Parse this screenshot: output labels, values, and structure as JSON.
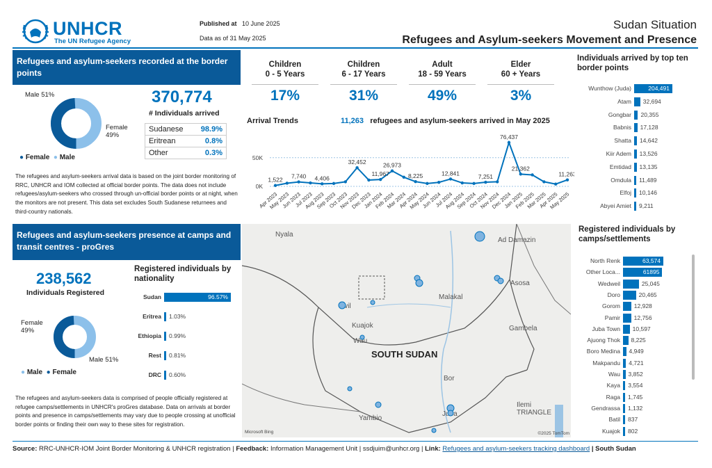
{
  "header": {
    "org_name": "UNHCR",
    "org_sub": "The UN Refugee Agency",
    "published_label": "Published at",
    "published_date": "10 June 2025",
    "data_as_of": "Data as of 31 May 2025",
    "situation": "Sudan Situation",
    "title": "Refugees and Asylum-seekers Movement and Presence"
  },
  "border": {
    "heading": "Refugees and asylum-seekers recorded at the border points",
    "total": "370,774",
    "total_label": "# Individuals arrived",
    "male_label": "Male 51%",
    "female_label": "Female 49%",
    "female_pct": 49,
    "legend_female": "Female",
    "legend_male": "Male",
    "nationalities": [
      {
        "name": "Sudanese",
        "value": "98.9%"
      },
      {
        "name": "Eritrean",
        "value": "0.8%"
      },
      {
        "name": "Other",
        "value": "0.3%"
      }
    ],
    "note": "The refugees and asylum-seekers arrival data is based on the joint border monitoring of RRC, UNHCR and IOM collected at official border points. The data does not include refugees/asylum-seekers who crossed through un-official border points or at night, when the monitors are not present. This data set excludes South Sudanese returnees and third-country nationals."
  },
  "age_groups": [
    {
      "title": "Children",
      "range": "0 - 5 Years",
      "pct": "17%"
    },
    {
      "title": "Children",
      "range": "6 - 17 Years",
      "pct": "31%"
    },
    {
      "title": "Adult",
      "range": "18 - 59 Years",
      "pct": "49%"
    },
    {
      "title": "Elder",
      "range": "60 + Years",
      "pct": "3%"
    }
  ],
  "trend": {
    "label": "Arrival Trends",
    "highlight": "11,263",
    "highlight_text": "refugees and asylum-seekers arrived in May 2025"
  },
  "top_border": {
    "heading": "Individuals arrived by top ten border points"
  },
  "presence": {
    "heading": "Refugees and asylum-seekers presence at camps and transit centres - proGres",
    "total": "238,562",
    "total_label": "Individuals Registered",
    "female_label": "Female 49%",
    "male_label": "Male 51%",
    "female_pct": 49,
    "legend_male": "Male",
    "legend_female": "Female",
    "nat_heading": "Registered individuals by nationality",
    "note": "The refugees and asylum-seekers data is comprised of people officially registered at refugee camps/settlements in UNHCR's proGres database. Data on arrivals at border points and presence in camps/settlements may vary due to people crossing at unofficial border points or finding their own way to these sites for registration."
  },
  "camps": {
    "heading": "Registered individuals by camps/settlements"
  },
  "map": {
    "country": "SOUTH SUDAN",
    "places": [
      "Nyala",
      "Ad Damazin",
      "Asosa",
      "Malakal",
      "Gambela",
      "Kuajok",
      "Wau",
      "Bor",
      "Juba",
      "Yambio",
      "Ilemi TRIANGLE",
      "Uvil"
    ],
    "attribution_left": "Microsoft Bing",
    "attribution_right": "©2025 TomTom"
  },
  "footer": {
    "source_label": "Source:",
    "source": "RRC-UNHCR-IOM Joint Border Monitoring & UNHCR registration |",
    "feedback_label": "Feedback:",
    "feedback": "Information Management Unit | ssdjuim@unhcr.org |",
    "link_label": "Link:",
    "link_text": "Refugees and asylum-seekers tracking dashboard",
    "tail": "| South Sudan"
  },
  "chart_data": [
    {
      "type": "line",
      "title": "Arrival Trends",
      "x": [
        "Apr 2023",
        "May 2023",
        "Jun 2023",
        "Jul 2023",
        "Aug 2023",
        "Sep 2023",
        "Oct 2023",
        "Nov 2023",
        "Dec 2023",
        "Jan 2024",
        "Feb 2024",
        "Mar 2024",
        "Apr 2024",
        "May 2024",
        "Jun 2024",
        "Jul 2024",
        "Aug 2024",
        "Sep 2024",
        "Oct 2024",
        "Nov 2024",
        "Dec 2024",
        "Jan 2025",
        "Feb 2025",
        "Mar 2025",
        "Apr 2025",
        "May 2025"
      ],
      "values": [
        1522,
        5500,
        7740,
        6000,
        4406,
        5000,
        8000,
        32452,
        11000,
        11967,
        26973,
        16000,
        8225,
        5000,
        7000,
        12841,
        6000,
        5000,
        7251,
        8000,
        76437,
        21362,
        20000,
        8000,
        4000,
        11263
      ],
      "labels": {
        "0": "1,522",
        "2": "7,740",
        "4": "4,406",
        "7": "32,452",
        "9": "11,967",
        "10": "26,973",
        "12": "8,225",
        "15": "12,841",
        "18": "7,251",
        "20": "76,437",
        "21": "21,362",
        "25": "11,263"
      },
      "x_tick_labels": [
        "Apr 2023",
        "May 2023",
        "Jun 2023",
        "Jul 2023",
        "Aug 2023",
        "Sep 2023",
        "Oct 2023",
        "Nov 2023",
        "Dec 2023",
        "Jan 2024",
        "Feb 2024",
        "Mar 2024",
        "Apr 2024",
        "May 2024",
        "Jun 2024",
        "Jul 2024",
        "Aug 2024",
        "Sep 2024",
        "Oct 2024",
        "Nov 2024",
        "Dec 2024",
        "Jan 2025",
        "Feb 2025",
        "Mar 2025",
        "Apr 2025",
        "May 2025"
      ],
      "y_ticks": [
        "0K",
        "50K"
      ],
      "ylim": [
        0,
        80000
      ]
    },
    {
      "type": "bar",
      "title": "Individuals arrived by top ten border points",
      "categories": [
        "Wunthow (Juda)",
        "Atam",
        "Gongbar",
        "Babnis",
        "Shatta",
        "Kiir Adem",
        "Emtidad",
        "Omdula",
        "Elfoj",
        "Abyei Amiet"
      ],
      "values": [
        204491,
        32694,
        20355,
        17128,
        14642,
        13526,
        13135,
        11489,
        10146,
        9211
      ],
      "labels": [
        "204,491",
        "32,694",
        "20,355",
        "17,128",
        "14,642",
        "13,526",
        "13,135",
        "11,489",
        "10,146",
        "9,211"
      ]
    },
    {
      "type": "bar",
      "title": "Registered individuals by nationality",
      "categories": [
        "Sudan",
        "Eritrea",
        "Ethiopia",
        "Rest",
        "DRC"
      ],
      "values": [
        96.57,
        1.03,
        0.99,
        0.81,
        0.6
      ],
      "labels": [
        "96.57%",
        "1.03%",
        "0.99%",
        "0.81%",
        "0.60%"
      ]
    },
    {
      "type": "bar",
      "title": "Registered individuals by camps/settlements",
      "categories": [
        "North Renk",
        "Other Loca...",
        "Wedweil",
        "Doro",
        "Gorom",
        "Pamir",
        "Juba Town",
        "Ajuong Thok",
        "Boro Medina",
        "Makpandu",
        "Wau",
        "Kaya",
        "Raga",
        "Gendrassa",
        "Batil",
        "Kuajok"
      ],
      "values": [
        63574,
        61895,
        25045,
        20465,
        12928,
        12756,
        10597,
        8225,
        4949,
        4721,
        3852,
        3554,
        1745,
        1132,
        837,
        802
      ],
      "labels": [
        "63,574",
        "61895",
        "25,045",
        "20,465",
        "12,928",
        "12,756",
        "10,597",
        "8,225",
        "4,949",
        "4,721",
        "3,852",
        "3,554",
        "1,745",
        "1,132",
        "837",
        "802"
      ]
    }
  ]
}
